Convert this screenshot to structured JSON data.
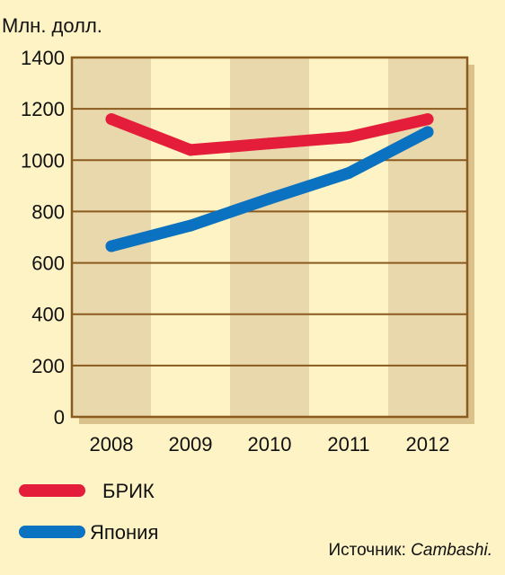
{
  "chart_data": {
    "type": "line",
    "title": "",
    "ylabel": "Млн. долл.",
    "xlabel": "",
    "categories": [
      "2008",
      "2009",
      "2010",
      "2011",
      "2012"
    ],
    "ylim": [
      0,
      1400
    ],
    "yticks": [
      "0",
      "200",
      "400",
      "600",
      "800",
      "1000",
      "1200",
      "1400"
    ],
    "grid": true,
    "legend_position": "bottom-left",
    "series": [
      {
        "name": "БРИК",
        "color": "#e41e3a",
        "values": [
          1160,
          1040,
          1065,
          1090,
          1160
        ]
      },
      {
        "name": "Япония",
        "color": "#0a72c0",
        "values": [
          665,
          745,
          850,
          950,
          1110
        ]
      }
    ],
    "source_prefix": "Источник:",
    "source_name": "Cambashi."
  },
  "colors": {
    "background": "#fdf3c4",
    "plot_band_light": "#fdf3c4",
    "plot_band_dark": "#ead8ad",
    "frame": "#8b5a1e",
    "shadow": "#d9c28c"
  }
}
